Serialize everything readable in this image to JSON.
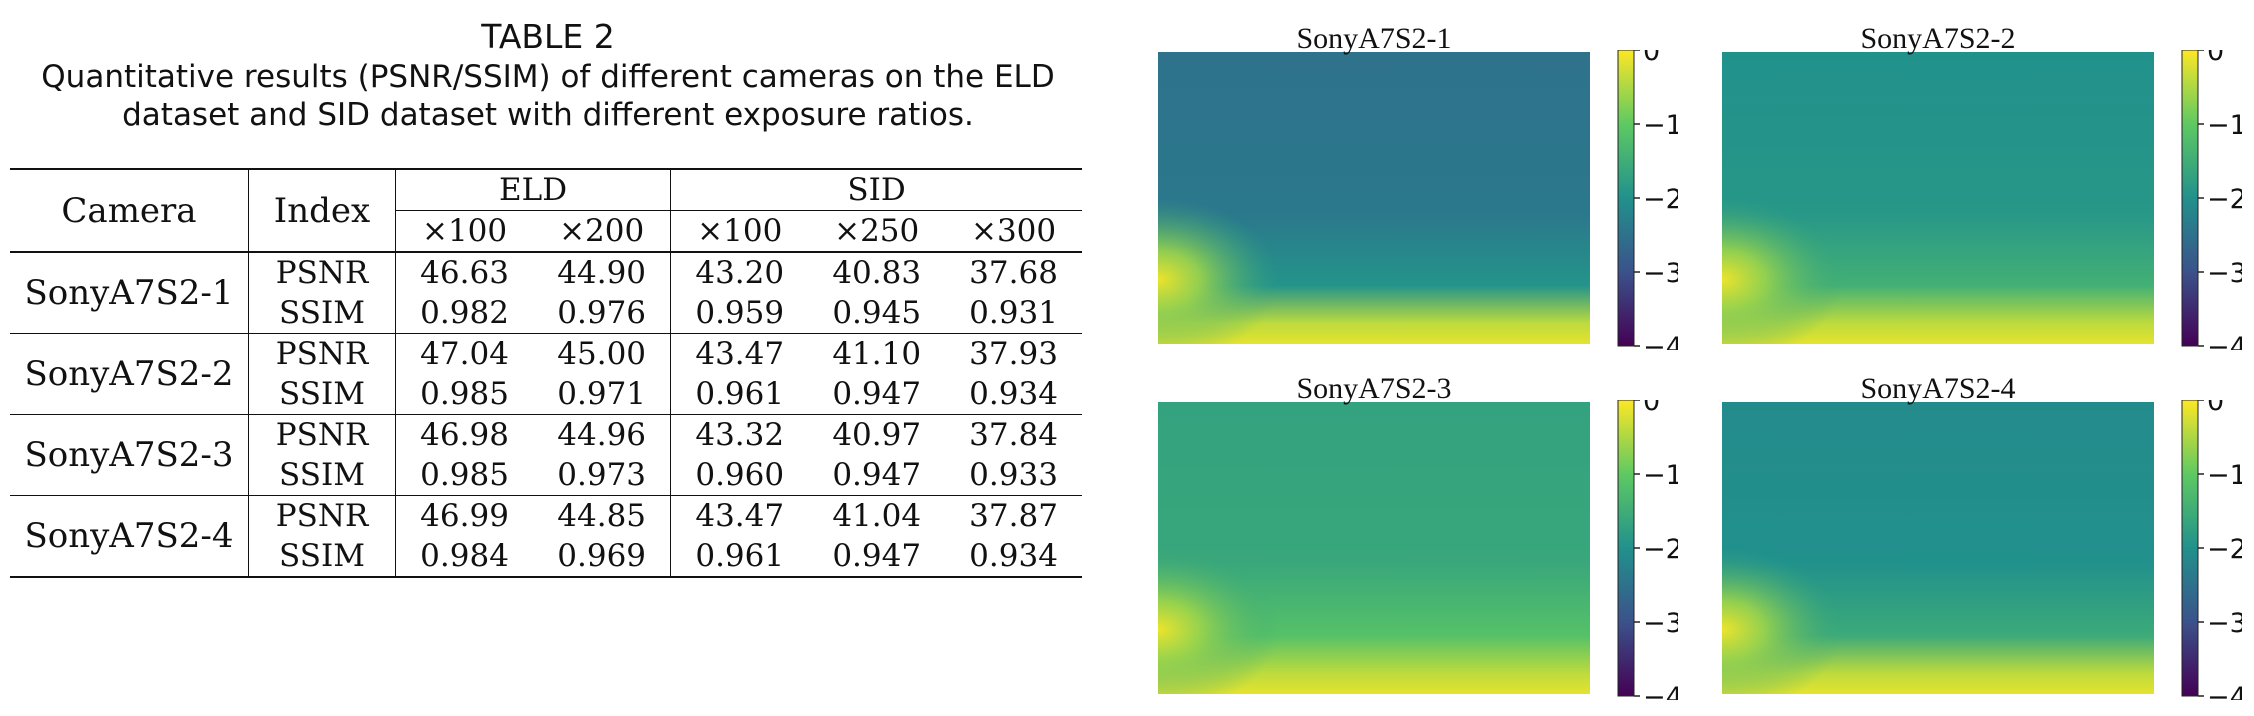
{
  "caption": {
    "table_number": "TABLE 2",
    "text": "Quantitative results (PSNR/SSIM) of different cameras on the ELD dataset and SID dataset with different exposure ratios."
  },
  "table": {
    "headers": {
      "camera": "Camera",
      "index": "Index",
      "eld": "ELD",
      "sid": "SID",
      "ratios": [
        "×100",
        "×200",
        "×100",
        "×250",
        "×300"
      ]
    },
    "rows": [
      {
        "camera": "SonyA7S2-1",
        "metrics": [
          {
            "index": "PSNR",
            "values": [
              "46.63",
              "44.90",
              "43.20",
              "40.83",
              "37.68"
            ]
          },
          {
            "index": "SSIM",
            "values": [
              "0.982",
              "0.976",
              "0.959",
              "0.945",
              "0.931"
            ]
          }
        ]
      },
      {
        "camera": "SonyA7S2-2",
        "metrics": [
          {
            "index": "PSNR",
            "values": [
              "47.04",
              "45.00",
              "43.47",
              "41.10",
              "37.93"
            ]
          },
          {
            "index": "SSIM",
            "values": [
              "0.985",
              "0.971",
              "0.961",
              "0.947",
              "0.934"
            ]
          }
        ]
      },
      {
        "camera": "SonyA7S2-3",
        "metrics": [
          {
            "index": "PSNR",
            "values": [
              "46.98",
              "44.96",
              "43.32",
              "40.97",
              "37.84"
            ]
          },
          {
            "index": "SSIM",
            "values": [
              "0.985",
              "0.973",
              "0.960",
              "0.947",
              "0.933"
            ]
          }
        ]
      },
      {
        "camera": "SonyA7S2-4",
        "metrics": [
          {
            "index": "PSNR",
            "values": [
              "46.99",
              "44.85",
              "43.47",
              "41.04",
              "37.87"
            ]
          },
          {
            "index": "SSIM",
            "values": [
              "0.984",
              "0.969",
              "0.961",
              "0.947",
              "0.934"
            ]
          }
        ]
      }
    ]
  },
  "heatmaps": {
    "colormap": "viridis",
    "colorbar_range": [
      -4,
      0
    ],
    "colorbar_ticks": [
      "0",
      "−1",
      "−2",
      "−3",
      "−4"
    ],
    "panels": [
      {
        "title": "SonyA7S2-1",
        "base_level": -2.5
      },
      {
        "title": "SonyA7S2-2",
        "base_level": -2.0
      },
      {
        "title": "SonyA7S2-3",
        "base_level": -1.7
      },
      {
        "title": "SonyA7S2-4",
        "base_level": -2.1
      }
    ]
  }
}
